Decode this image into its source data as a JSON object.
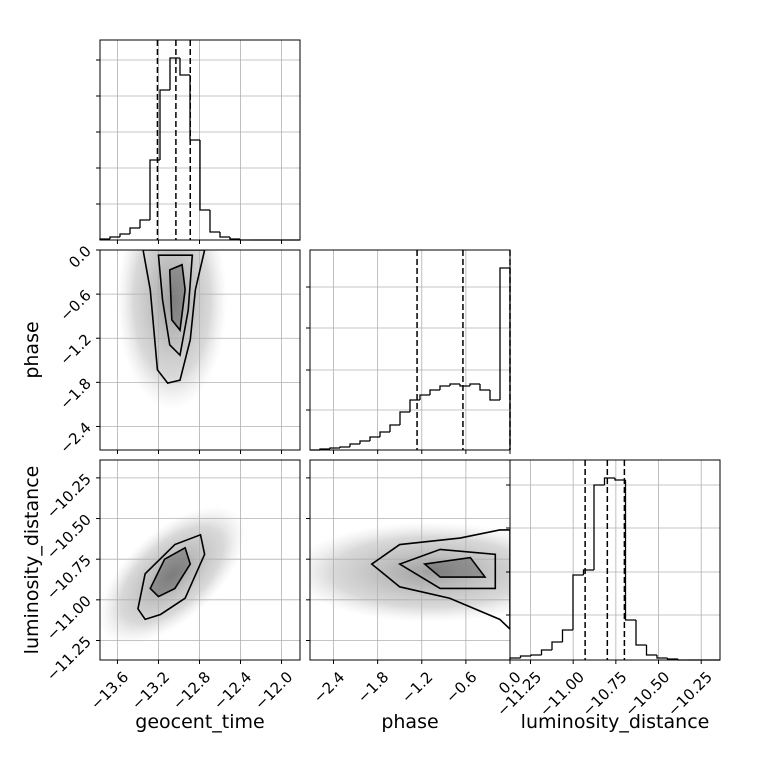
{
  "chart_data": {
    "type": "corner",
    "parameters": [
      {
        "name": "geocent_time",
        "lim": [
          -13.77,
          -11.82
        ],
        "ticks": [
          {
            "value": -13.6,
            "label": "−13.6"
          },
          {
            "value": -13.2,
            "label": "−13.2"
          },
          {
            "value": -12.8,
            "label": "−12.8"
          },
          {
            "value": -12.4,
            "label": "−12.4"
          },
          {
            "value": -12.0,
            "label": "−12.0"
          }
        ],
        "bins": [
          -13.77,
          -13.6725,
          -13.575,
          -13.4775,
          -13.38,
          -13.2825,
          -13.185,
          -13.0875,
          -12.99,
          -12.8925,
          -12.795,
          -12.6975,
          -12.6,
          -12.5025,
          -12.405,
          -12.3075,
          -12.21,
          -12.1125,
          -12.015,
          -11.9175,
          -11.82
        ],
        "counts": [
          1,
          3,
          6,
          12,
          20,
          80,
          150,
          182,
          165,
          100,
          30,
          8,
          3,
          1,
          0,
          0,
          0,
          0,
          0,
          0
        ],
        "hist_ylim": [
          0,
          200
        ],
        "hist_yticks": [
          36,
          72,
          108,
          144,
          180
        ],
        "quantiles": [
          -13.21,
          -13.03,
          -12.89
        ]
      },
      {
        "name": "phase",
        "lim": [
          -2.72,
          0.0
        ],
        "ticks": [
          {
            "value": -2.4,
            "label": "−2.4"
          },
          {
            "value": -1.8,
            "label": "−1.8"
          },
          {
            "value": -1.2,
            "label": "−1.2"
          },
          {
            "value": -0.6,
            "label": "−0.6"
          },
          {
            "value": 0.0,
            "label": "0.0"
          }
        ],
        "bins": [
          -2.72,
          -2.584,
          -2.448,
          -2.312,
          -2.176,
          -2.04,
          -1.904,
          -1.768,
          -1.632,
          -1.496,
          -1.36,
          -1.224,
          -1.088,
          -0.952,
          -0.816,
          -0.68,
          -0.544,
          -0.408,
          -0.272,
          -0.136,
          0.0
        ],
        "counts": [
          0,
          1,
          2,
          3,
          6,
          9,
          13,
          18,
          25,
          38,
          50,
          55,
          60,
          64,
          66,
          64,
          66,
          60,
          50,
          182
        ],
        "hist_ylim": [
          0,
          200
        ],
        "hist_yticks": [
          40,
          80,
          122,
          163
        ],
        "quantiles": [
          -1.264,
          -0.64,
          0.0
        ]
      },
      {
        "name": "luminosity_distance",
        "lim": [
          -11.37,
          -10.14
        ],
        "ticks": [
          {
            "value": -11.25,
            "label": "−11.25"
          },
          {
            "value": -11.0,
            "label": "−11.00"
          },
          {
            "value": -10.75,
            "label": "−10.75"
          },
          {
            "value": -10.5,
            "label": "−10.50"
          },
          {
            "value": -10.25,
            "label": "−10.25"
          }
        ],
        "bins": [
          -11.37,
          -11.3085,
          -11.247,
          -11.1855,
          -11.124,
          -11.0625,
          -11.001,
          -10.9395,
          -10.878,
          -10.8165,
          -10.755,
          -10.6935,
          -10.632,
          -10.5705,
          -10.509,
          -10.4475,
          -10.386,
          -10.3245,
          -10.263,
          -10.2015,
          -10.14
        ],
        "counts": [
          2,
          4,
          5,
          10,
          18,
          30,
          85,
          90,
          175,
          182,
          180,
          40,
          15,
          5,
          2,
          1,
          0,
          0,
          0,
          0
        ],
        "hist_ylim": [
          0,
          200
        ],
        "hist_yticks": [
          45,
          88,
          132,
          175
        ],
        "quantiles": [
          -10.93,
          -10.8,
          -10.7
        ]
      }
    ],
    "pairs": [
      {
        "contours": [
          {
            "x": [
              -13.35,
              -13.28,
              -13.21,
              -13.11,
              -12.99,
              -12.89,
              -12.84,
              -12.75
            ],
            "y": [
              0,
              -0.54,
              -1.63,
              -1.81,
              -1.77,
              -1.22,
              -0.54,
              0
            ]
          },
          {
            "x": [
              -13.2,
              -13.16,
              -13.09,
              -12.99,
              -12.91,
              -12.87
            ],
            "y": [
              -0.07,
              -0.68,
              -1.29,
              -1.43,
              -0.82,
              -0.07
            ]
          },
          {
            "x": [
              -13.09,
              -13.07,
              -12.99,
              -12.94,
              -12.97
            ],
            "y": [
              -0.27,
              -0.95,
              -1.09,
              -0.54,
              -0.2
            ]
          }
        ]
      },
      {
        "contours": [
          {
            "x": [
              -13.4,
              -13.33,
              -13.04,
              -12.79,
              -12.75,
              -12.94,
              -13.18,
              -13.33
            ],
            "y": [
              -11.055,
              -10.84,
              -10.66,
              -10.6,
              -10.72,
              -10.99,
              -11.09,
              -11.12
            ]
          },
          {
            "x": [
              -13.28,
              -13.14,
              -12.94,
              -12.89,
              -13.04,
              -13.2
            ],
            "y": [
              -10.93,
              -10.75,
              -10.68,
              -10.78,
              -10.93,
              -10.98
            ]
          }
        ]
      },
      {
        "contours": [
          {
            "x": [
              -1.88,
              -1.5,
              -0.68,
              -0.14,
              0,
              0,
              -0.14,
              -0.82,
              -1.5
            ],
            "y": [
              -10.78,
              -10.66,
              -10.62,
              -10.57,
              -10.57,
              -11.18,
              -11.12,
              -10.99,
              -10.92
            ]
          },
          {
            "x": [
              -1.5,
              -0.95,
              -0.2,
              -0.2,
              -0.95
            ],
            "y": [
              -10.78,
              -10.69,
              -10.72,
              -10.93,
              -10.93
            ]
          },
          {
            "x": [
              -1.16,
              -0.54,
              -0.34,
              -0.95
            ],
            "y": [
              -10.78,
              -10.74,
              -10.86,
              -10.86
            ]
          }
        ]
      }
    ],
    "grid": true
  }
}
